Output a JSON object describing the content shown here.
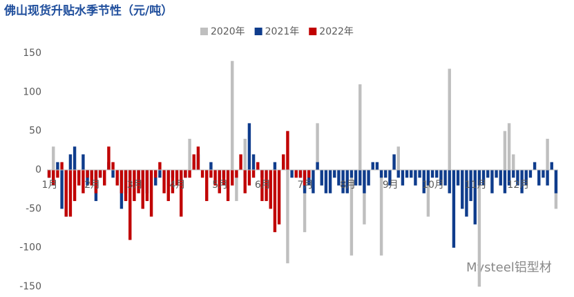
{
  "chart_data": {
    "type": "bar",
    "title": "佛山现货升贴水季节性（元/吨）",
    "watermark": "Mysteel铝型材",
    "categories": [
      "1月",
      null,
      null,
      null,
      null,
      null,
      null,
      null,
      null,
      null,
      "2月",
      null,
      null,
      null,
      null,
      null,
      null,
      null,
      null,
      null,
      "3月",
      null,
      null,
      null,
      null,
      null,
      null,
      null,
      null,
      null,
      "4月",
      null,
      null,
      null,
      null,
      null,
      null,
      null,
      null,
      null,
      "5月",
      null,
      null,
      null,
      null,
      null,
      null,
      null,
      null,
      null,
      "6月",
      null,
      null,
      null,
      null,
      null,
      null,
      null,
      null,
      null,
      "7月",
      null,
      null,
      null,
      null,
      null,
      null,
      null,
      null,
      null,
      "8月",
      null,
      null,
      null,
      null,
      null,
      null,
      null,
      null,
      null,
      "9月",
      null,
      null,
      null,
      null,
      null,
      null,
      null,
      null,
      null,
      "10月",
      null,
      null,
      null,
      null,
      null,
      null,
      null,
      null,
      null,
      "11月",
      null,
      null,
      null,
      null,
      null,
      null,
      null,
      null,
      null,
      "12月",
      null,
      null,
      null,
      null,
      null,
      null,
      null,
      null,
      null
    ],
    "series": [
      {
        "name": "2020年",
        "color": "#bfbfbf",
        "values": [
          null,
          30,
          null,
          null,
          null,
          -30,
          null,
          null,
          null,
          null,
          null,
          null,
          null,
          null,
          null,
          null,
          null,
          null,
          null,
          null,
          null,
          null,
          null,
          null,
          null,
          null,
          null,
          null,
          null,
          null,
          null,
          null,
          null,
          40,
          null,
          null,
          null,
          null,
          null,
          null,
          null,
          null,
          null,
          140,
          -40,
          null,
          40,
          null,
          null,
          null,
          null,
          null,
          null,
          null,
          null,
          null,
          -120,
          null,
          null,
          null,
          -80,
          null,
          null,
          60,
          null,
          null,
          null,
          null,
          null,
          null,
          null,
          -110,
          null,
          110,
          -70,
          null,
          null,
          null,
          -110,
          null,
          null,
          20,
          30,
          null,
          null,
          null,
          null,
          null,
          null,
          -60,
          null,
          null,
          null,
          null,
          130,
          null,
          null,
          null,
          null,
          null,
          null,
          -150,
          null,
          null,
          null,
          null,
          null,
          50,
          60,
          20,
          null,
          null,
          null,
          null,
          null,
          null,
          null,
          40,
          null,
          -50
        ]
      },
      {
        "name": "2021年",
        "color": "#0f3c8c",
        "values": [
          -10,
          -20,
          10,
          -50,
          -60,
          20,
          30,
          -10,
          20,
          -20,
          -10,
          -40,
          -10,
          null,
          10,
          -10,
          null,
          -50,
          -30,
          -10,
          null,
          -20,
          -10,
          -30,
          null,
          -20,
          -10,
          null,
          -20,
          -10,
          null,
          null,
          -10,
          null,
          10,
          20,
          null,
          -10,
          10,
          null,
          -20,
          -10,
          null,
          -10,
          null,
          null,
          -10,
          60,
          20,
          null,
          -10,
          null,
          null,
          10,
          null,
          10,
          null,
          -10,
          null,
          -10,
          -30,
          -20,
          -30,
          10,
          -20,
          -30,
          -30,
          -10,
          -20,
          -30,
          -30,
          -10,
          -20,
          -20,
          -30,
          -20,
          10,
          10,
          -10,
          -10,
          -20,
          20,
          -10,
          -20,
          -10,
          -10,
          -20,
          -10,
          -30,
          -20,
          -10,
          -10,
          -20,
          -20,
          -30,
          -100,
          -20,
          -50,
          -60,
          -40,
          -70,
          -20,
          -20,
          -10,
          -30,
          -10,
          -20,
          -30,
          -20,
          -10,
          -20,
          -30,
          -20,
          -10,
          10,
          -20,
          -10,
          -20,
          10,
          -30
        ]
      },
      {
        "name": "2022年",
        "color": "#c00000",
        "values": [
          -10,
          -20,
          -10,
          10,
          -60,
          -60,
          -40,
          -20,
          -30,
          -10,
          -20,
          -30,
          -10,
          -20,
          30,
          10,
          -20,
          -30,
          -40,
          -90,
          -40,
          -30,
          -50,
          -40,
          -60,
          -10,
          10,
          -30,
          -40,
          -30,
          -20,
          -60,
          -10,
          -10,
          20,
          30,
          -10,
          -40,
          -10,
          -20,
          -30,
          -20,
          -40,
          -20,
          -10,
          20,
          -30,
          -20,
          -10,
          10,
          -40,
          -40,
          -50,
          -80,
          -70,
          20,
          50,
          null,
          -10,
          -10,
          -20,
          -10,
          null,
          null,
          null,
          null,
          null,
          null,
          null,
          null,
          null,
          null,
          null,
          null,
          null,
          null,
          null,
          null,
          null,
          null,
          null,
          null,
          null,
          null,
          null,
          null,
          null,
          null,
          null,
          null,
          null,
          null,
          null,
          null,
          null,
          null,
          null,
          null,
          null,
          null,
          null,
          null,
          null,
          null,
          null,
          null,
          null,
          null,
          null,
          null,
          null,
          null,
          null,
          null,
          null,
          null,
          null,
          null,
          null,
          null
        ]
      }
    ],
    "ylim": [
      -150,
      150
    ],
    "yticks": [
      150,
      100,
      50,
      0,
      -50,
      -100,
      -150
    ],
    "grid": false,
    "legend": "top"
  }
}
